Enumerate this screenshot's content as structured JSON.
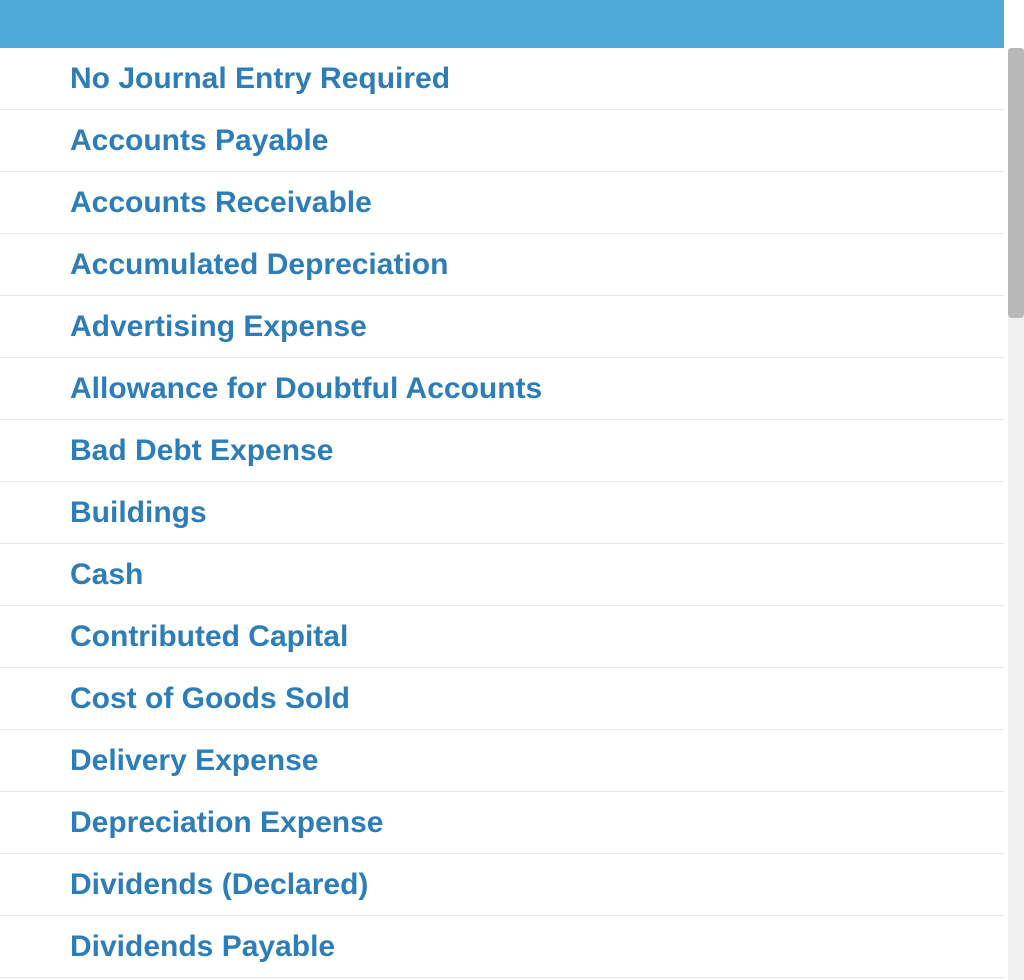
{
  "dropdown": {
    "header_color": "#4fa9d9",
    "item_text_color": "#2d7db8",
    "item_border_color": "#e8e8e8",
    "background_color": "#ffffff",
    "item_font_size": 30,
    "item_font_weight": "bold",
    "items": [
      {
        "label": "No Journal Entry Required"
      },
      {
        "label": "Accounts Payable"
      },
      {
        "label": "Accounts Receivable"
      },
      {
        "label": "Accumulated Depreciation"
      },
      {
        "label": "Advertising Expense"
      },
      {
        "label": "Allowance for Doubtful Accounts"
      },
      {
        "label": "Bad Debt Expense"
      },
      {
        "label": "Buildings"
      },
      {
        "label": "Cash"
      },
      {
        "label": "Contributed Capital"
      },
      {
        "label": "Cost of Goods Sold"
      },
      {
        "label": "Delivery Expense"
      },
      {
        "label": "Depreciation Expense"
      },
      {
        "label": "Dividends (Declared)"
      },
      {
        "label": "Dividends Payable"
      }
    ],
    "scrollbar": {
      "track_color": "#f0f0f0",
      "thumb_color": "#b8b8b8",
      "thumb_height_ratio": 0.29
    }
  }
}
